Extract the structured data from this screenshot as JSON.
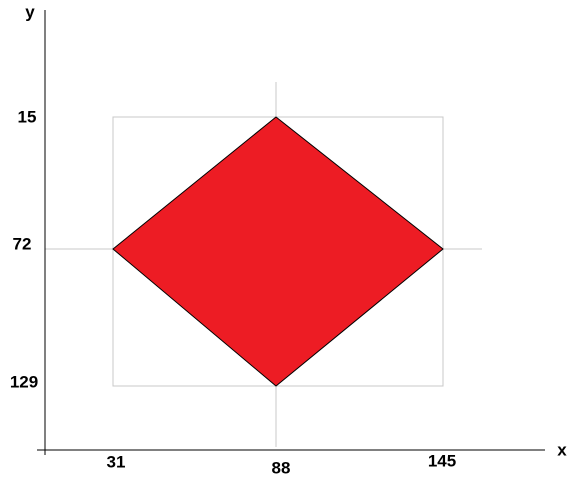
{
  "axes": {
    "y_label": "y",
    "x_label": "x",
    "y_ticks": [
      "15",
      "72",
      "129"
    ],
    "x_ticks": [
      "31",
      "88",
      "145"
    ]
  }
}
